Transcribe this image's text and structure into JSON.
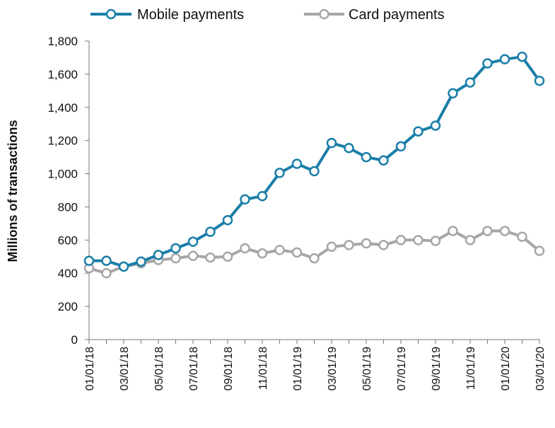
{
  "chart_data": {
    "type": "line",
    "title": "",
    "xlabel": "",
    "ylabel": "Millions of transactions",
    "ylim": [
      0,
      1800
    ],
    "y_ticks": [
      "0",
      "200",
      "400",
      "600",
      "800",
      "1,000",
      "1,200",
      "1,400",
      "1,600",
      "1,800"
    ],
    "x_tick_labels": [
      "01/01/18",
      "03/01/18",
      "05/01/18",
      "07/01/18",
      "09/01/18",
      "11/01/18",
      "01/01/19",
      "03/01/19",
      "05/01/19",
      "07/01/19",
      "09/01/19",
      "11/01/19",
      "01/01/20",
      "03/01/20"
    ],
    "grid": false,
    "legend": {
      "placement": "top",
      "entries": [
        "Mobile payments",
        "Card payments"
      ]
    },
    "x": [
      "2018-01",
      "2018-02",
      "2018-03",
      "2018-04",
      "2018-05",
      "2018-06",
      "2018-07",
      "2018-08",
      "2018-09",
      "2018-10",
      "2018-11",
      "2018-12",
      "2019-01",
      "2019-02",
      "2019-03",
      "2019-04",
      "2019-05",
      "2019-06",
      "2019-07",
      "2019-08",
      "2019-09",
      "2019-10",
      "2019-11",
      "2019-12",
      "2020-01",
      "2020-02",
      "2020-03"
    ],
    "series": [
      {
        "name": "Mobile payments",
        "color": "#1a7ea8",
        "values": [
          475,
          475,
          440,
          470,
          510,
          550,
          590,
          650,
          720,
          845,
          865,
          1005,
          1060,
          1015,
          1185,
          1155,
          1100,
          1080,
          1165,
          1255,
          1290,
          1485,
          1550,
          1665,
          1690,
          1705,
          1560
        ]
      },
      {
        "name": "Card payments",
        "color": "#a6a6a6",
        "values": [
          430,
          400,
          440,
          460,
          480,
          490,
          505,
          495,
          500,
          550,
          520,
          540,
          525,
          490,
          560,
          570,
          580,
          570,
          600,
          600,
          595,
          655,
          600,
          655,
          655,
          620,
          535
        ]
      }
    ]
  }
}
